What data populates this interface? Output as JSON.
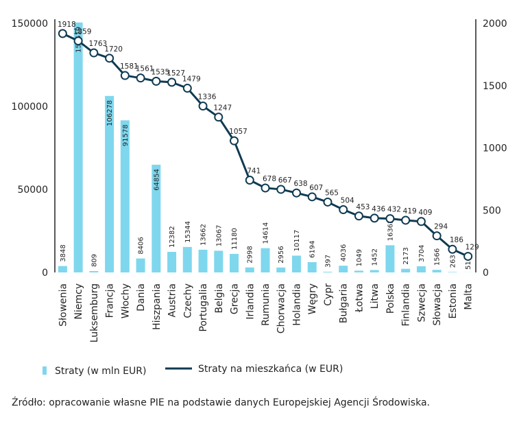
{
  "colors": {
    "bar": "#7fd7ee",
    "line": "#0f3a52",
    "axis": "#222222"
  },
  "chart_data": {
    "type": "bar+line",
    "categories": [
      "Słowenia",
      "Niemcy",
      "Luksemburg",
      "Francja",
      "Włochy",
      "Dania",
      "Hiszpania",
      "Austria",
      "Czechy",
      "Portugalia",
      "Belgia",
      "Grecja",
      "Irlandia",
      "Rumunia",
      "Chorwacja",
      "Holandia",
      "Węgry",
      "Cypr",
      "Bułgaria",
      "Łotwa",
      "Litwa",
      "Polska",
      "Finlandia",
      "Szwecja",
      "Słowacja",
      "Estonia",
      "Malta"
    ],
    "series": [
      {
        "name": "Straty (w mln EUR)",
        "type": "bar",
        "axis": "left",
        "values": [
          3848,
          150519,
          809,
          106278,
          91578,
          8406,
          64854,
          12382,
          15344,
          13662,
          13067,
          11180,
          2998,
          14614,
          2956,
          10117,
          6194,
          397,
          4036,
          1049,
          1452,
          16362,
          2173,
          3704,
          1566,
          263,
          51
        ]
      },
      {
        "name": "Straty na mieszkańca (w EUR)",
        "type": "line",
        "axis": "right",
        "values": [
          1918,
          1859,
          1763,
          1720,
          1581,
          1561,
          1535,
          1527,
          1479,
          1336,
          1247,
          1057,
          741,
          678,
          667,
          638,
          607,
          565,
          504,
          453,
          436,
          432,
          419,
          409,
          294,
          186,
          129
        ]
      }
    ],
    "left_axis": {
      "ylim": [
        0,
        150000
      ],
      "ticks": [
        "0",
        "50000",
        "100000",
        "150000"
      ]
    },
    "right_axis": {
      "ylim": [
        0,
        2000
      ],
      "ticks": [
        "0",
        "500",
        "1000",
        "1500",
        "2000"
      ]
    },
    "legend_placement": "bottom-left",
    "grid": false
  },
  "source": "Źródło: opracowanie własne PIE na podstawie danych Europejskiej Agencji Środowiska."
}
